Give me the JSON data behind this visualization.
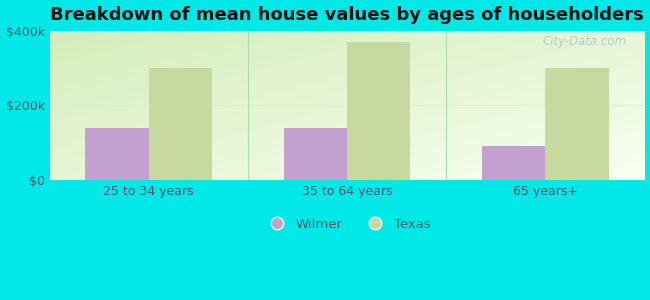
{
  "title": "Breakdown of mean house values by ages of householders",
  "categories": [
    "25 to 34 years",
    "35 to 64 years",
    "65 years+"
  ],
  "wilmer_values": [
    140000,
    140000,
    90000
  ],
  "texas_values": [
    300000,
    370000,
    300000
  ],
  "wilmer_color": "#c4a0d0",
  "texas_color": "#c8d9a0",
  "background_color": "#00e8e8",
  "plot_bg_top_left": "#d0ebb0",
  "plot_bg_bottom_right": "#f5fff5",
  "ylim": [
    0,
    400000
  ],
  "yticks": [
    0,
    200000,
    400000
  ],
  "ytick_labels": [
    "$0",
    "$200k",
    "$400k"
  ],
  "legend_labels": [
    "Wilmer",
    "Texas"
  ],
  "title_fontsize": 13,
  "bar_width": 0.32,
  "watermark": "City-Data.com",
  "divider_color": "#aaddaa",
  "tick_label_color": "#555566",
  "grid_color": "#ddeecc"
}
